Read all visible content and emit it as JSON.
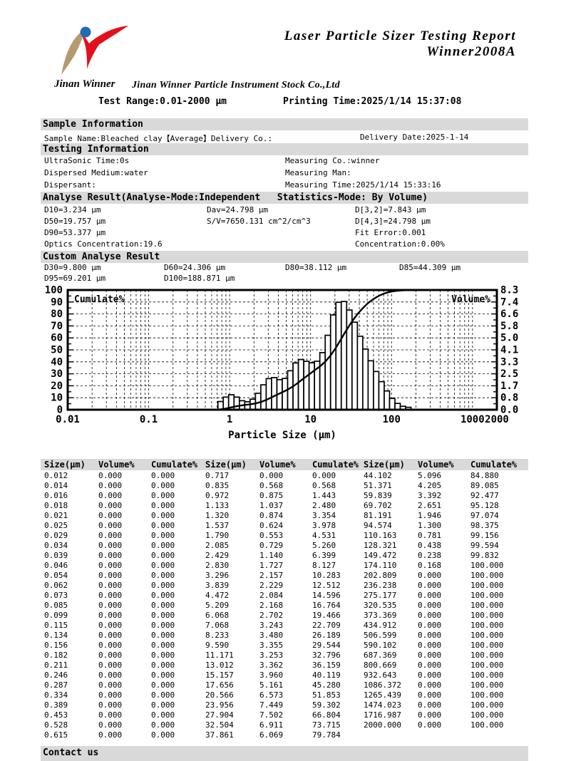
{
  "colors": {
    "section_bar": "#d9d9d9",
    "ink": "#000000",
    "logo_blue": "#1f6cb5",
    "logo_red": "#e3101c",
    "logo_tan": "#b49a6e"
  },
  "logo": {
    "brand_text": "Jinan Winner"
  },
  "header": {
    "title_line1": "Laser Particle Sizer Testing Report",
    "title_line2": "Winner2008A",
    "company": "Jinan Winner Particle Instrument Stock Co.,Ltd",
    "test_range": "Test Range:0.01-2000 μm",
    "printing_time": "Printing Time:2025/1/14 15:37:08"
  },
  "sections": {
    "sample_info": {
      "heading": "Sample Information",
      "sample_name": "Sample Name:Bleached clay【Average】Delivery Co.:",
      "delivery_date": "Delivery Date:2025-1-14"
    },
    "testing_info": {
      "heading": "Testing Information",
      "rows": [
        [
          "UltraSonic Time:0s",
          "Measuring Co.:winner"
        ],
        [
          "Dispersed Medium:water",
          "Measuring Man:"
        ],
        [
          "Dispersant:",
          "Measuring Time:2025/1/14 15:33:16"
        ]
      ]
    },
    "analyse": {
      "heading": "Analyse Result(Analyse-Mode:Independent   Statistics-Mode: By Volume)",
      "rows": [
        [
          "D10=3.234 μm",
          "Dav=24.798 μm",
          "D[3,2]=7.843 μm"
        ],
        [
          "D50=19.757 μm",
          "S/V=7650.131 cm^2/cm^3",
          "D[4,3]=24.798 μm"
        ],
        [
          "D90=53.377 μm",
          "",
          "Fit Error:0.001"
        ],
        [
          "Optics Concentration:19.6",
          "",
          "Concentration:0.00%"
        ]
      ]
    },
    "custom": {
      "heading": "Custom Analyse Result",
      "rows": [
        [
          "D30=9.800 μm",
          "D60=24.306 μm",
          "D80=38.112 μm",
          "D85=44.309 μm"
        ],
        [
          "D95=69.201 μm",
          "D100=188.871 μm",
          "",
          ""
        ]
      ]
    },
    "contact": {
      "heading": "Contact us"
    }
  },
  "chart_data": {
    "type": "histogram+cumulative-line",
    "title": "",
    "x_axis": {
      "label": "Particle Size (μm)",
      "scale": "log",
      "min": 0.01,
      "max": 2000,
      "tick_values": [
        0.01,
        0.1,
        1,
        10,
        100,
        1000,
        2000
      ],
      "tick_labels": [
        "0.01",
        "0.1",
        "1",
        "10",
        "100",
        "1000",
        "2000"
      ]
    },
    "left_axis": {
      "label": "Cumulate%",
      "min": 0,
      "max": 100,
      "tick_labels": [
        "100",
        "90",
        "80",
        "70",
        "60",
        "50",
        "40",
        "30",
        "20",
        "10",
        "0"
      ]
    },
    "right_axis": {
      "label": "Volume%",
      "min": 0,
      "max": 8.3,
      "tick_labels": [
        "8.3",
        "7.4",
        "6.6",
        "5.8",
        "5.0",
        "4.1",
        "3.3",
        "2.5",
        "1.7",
        "0.8",
        "0.0"
      ]
    },
    "grid": "dashed",
    "sizes": [
      0.012,
      0.014,
      0.016,
      0.018,
      0.021,
      0.025,
      0.029,
      0.034,
      0.039,
      0.046,
      0.054,
      0.062,
      0.073,
      0.085,
      0.099,
      0.115,
      0.134,
      0.156,
      0.182,
      0.211,
      0.246,
      0.287,
      0.334,
      0.389,
      0.453,
      0.528,
      0.615,
      0.717,
      0.835,
      0.972,
      1.133,
      1.32,
      1.537,
      1.79,
      2.085,
      2.429,
      2.83,
      3.296,
      3.839,
      4.472,
      5.209,
      6.068,
      7.068,
      8.233,
      9.59,
      11.171,
      13.012,
      15.157,
      17.656,
      20.566,
      23.956,
      27.904,
      32.504,
      37.861,
      44.102,
      51.371,
      59.839,
      69.702,
      81.191,
      94.574,
      110.163,
      128.321,
      149.472,
      174.11,
      202.809,
      236.238,
      275.177,
      320.535,
      373.369,
      434.912,
      506.599,
      590.102,
      687.369,
      800.669,
      932.643,
      1086.372,
      1265.439,
      1474.023,
      1716.987,
      2000
    ],
    "volume": [
      0,
      0,
      0,
      0,
      0,
      0,
      0,
      0,
      0,
      0,
      0,
      0,
      0,
      0,
      0,
      0,
      0,
      0,
      0,
      0,
      0,
      0,
      0,
      0,
      0,
      0,
      0,
      0,
      0.568,
      0.875,
      1.037,
      0.874,
      0.624,
      0.553,
      0.729,
      1.14,
      1.727,
      2.157,
      2.229,
      2.084,
      2.168,
      2.702,
      3.243,
      3.48,
      3.355,
      3.253,
      3.362,
      3.96,
      5.161,
      6.573,
      7.449,
      7.502,
      6.911,
      6.069,
      5.096,
      4.205,
      3.392,
      2.651,
      1.946,
      1.3,
      0.781,
      0.438,
      0.238,
      0.168,
      0,
      0,
      0,
      0,
      0,
      0,
      0,
      0,
      0,
      0,
      0,
      0,
      0,
      0,
      0,
      0
    ],
    "cumulate": [
      0,
      0,
      0,
      0,
      0,
      0,
      0,
      0,
      0,
      0,
      0,
      0,
      0,
      0,
      0,
      0,
      0,
      0,
      0,
      0,
      0,
      0,
      0,
      0,
      0,
      0,
      0,
      0,
      0.568,
      1.443,
      2.48,
      3.354,
      3.978,
      4.531,
      5.26,
      6.399,
      8.127,
      10.283,
      12.512,
      14.596,
      16.764,
      19.466,
      22.709,
      26.189,
      29.544,
      32.796,
      36.159,
      40.119,
      45.28,
      51.853,
      59.302,
      66.804,
      73.715,
      79.784,
      84.88,
      89.085,
      92.477,
      95.128,
      97.074,
      98.375,
      99.156,
      99.594,
      99.832,
      100,
      100,
      100,
      100,
      100,
      100,
      100,
      100,
      100,
      100,
      100,
      100,
      100,
      100,
      100,
      100,
      100
    ]
  },
  "table": {
    "headers": [
      "Size(μm)",
      "Volume%",
      "Cumulate%",
      "Size(μm)",
      "Volume%",
      "Cumulate%",
      "Size(μm)",
      "Volume%",
      "Cumulate%"
    ],
    "rows": [
      [
        "0.012",
        "0.000",
        "0.000",
        "0.717",
        "0.000",
        "0.000",
        "44.102",
        "5.096",
        "84.880"
      ],
      [
        "0.014",
        "0.000",
        "0.000",
        "0.835",
        "0.568",
        "0.568",
        "51.371",
        "4.205",
        "89.085"
      ],
      [
        "0.016",
        "0.000",
        "0.000",
        "0.972",
        "0.875",
        "1.443",
        "59.839",
        "3.392",
        "92.477"
      ],
      [
        "0.018",
        "0.000",
        "0.000",
        "1.133",
        "1.037",
        "2.480",
        "69.702",
        "2.651",
        "95.128"
      ],
      [
        "0.021",
        "0.000",
        "0.000",
        "1.320",
        "0.874",
        "3.354",
        "81.191",
        "1.946",
        "97.074"
      ],
      [
        "0.025",
        "0.000",
        "0.000",
        "1.537",
        "0.624",
        "3.978",
        "94.574",
        "1.300",
        "98.375"
      ],
      [
        "0.029",
        "0.000",
        "0.000",
        "1.790",
        "0.553",
        "4.531",
        "110.163",
        "0.781",
        "99.156"
      ],
      [
        "0.034",
        "0.000",
        "0.000",
        "2.085",
        "0.729",
        "5.260",
        "128.321",
        "0.438",
        "99.594"
      ],
      [
        "0.039",
        "0.000",
        "0.000",
        "2.429",
        "1.140",
        "6.399",
        "149.472",
        "0.238",
        "99.832"
      ],
      [
        "0.046",
        "0.000",
        "0.000",
        "2.830",
        "1.727",
        "8.127",
        "174.110",
        "0.168",
        "100.000"
      ],
      [
        "0.054",
        "0.000",
        "0.000",
        "3.296",
        "2.157",
        "10.283",
        "202.809",
        "0.000",
        "100.000"
      ],
      [
        "0.062",
        "0.000",
        "0.000",
        "3.839",
        "2.229",
        "12.512",
        "236.238",
        "0.000",
        "100.000"
      ],
      [
        "0.073",
        "0.000",
        "0.000",
        "4.472",
        "2.084",
        "14.596",
        "275.177",
        "0.000",
        "100.000"
      ],
      [
        "0.085",
        "0.000",
        "0.000",
        "5.209",
        "2.168",
        "16.764",
        "320.535",
        "0.000",
        "100.000"
      ],
      [
        "0.099",
        "0.000",
        "0.000",
        "6.068",
        "2.702",
        "19.466",
        "373.369",
        "0.000",
        "100.000"
      ],
      [
        "0.115",
        "0.000",
        "0.000",
        "7.068",
        "3.243",
        "22.709",
        "434.912",
        "0.000",
        "100.000"
      ],
      [
        "0.134",
        "0.000",
        "0.000",
        "8.233",
        "3.480",
        "26.189",
        "506.599",
        "0.000",
        "100.000"
      ],
      [
        "0.156",
        "0.000",
        "0.000",
        "9.590",
        "3.355",
        "29.544",
        "590.102",
        "0.000",
        "100.000"
      ],
      [
        "0.182",
        "0.000",
        "0.000",
        "11.171",
        "3.253",
        "32.796",
        "687.369",
        "0.000",
        "100.000"
      ],
      [
        "0.211",
        "0.000",
        "0.000",
        "13.012",
        "3.362",
        "36.159",
        "800.669",
        "0.000",
        "100.000"
      ],
      [
        "0.246",
        "0.000",
        "0.000",
        "15.157",
        "3.960",
        "40.119",
        "932.643",
        "0.000",
        "100.000"
      ],
      [
        "0.287",
        "0.000",
        "0.000",
        "17.656",
        "5.161",
        "45.280",
        "1086.372",
        "0.000",
        "100.000"
      ],
      [
        "0.334",
        "0.000",
        "0.000",
        "20.566",
        "6.573",
        "51.853",
        "1265.439",
        "0.000",
        "100.000"
      ],
      [
        "0.389",
        "0.000",
        "0.000",
        "23.956",
        "7.449",
        "59.302",
        "1474.023",
        "0.000",
        "100.000"
      ],
      [
        "0.453",
        "0.000",
        "0.000",
        "27.904",
        "7.502",
        "66.804",
        "1716.987",
        "0.000",
        "100.000"
      ],
      [
        "0.528",
        "0.000",
        "0.000",
        "32.504",
        "6.911",
        "73.715",
        "2000.000",
        "0.000",
        "100.000"
      ],
      [
        "0.615",
        "0.000",
        "0.000",
        "37.861",
        "6.069",
        "79.784",
        "",
        "",
        ""
      ]
    ]
  }
}
